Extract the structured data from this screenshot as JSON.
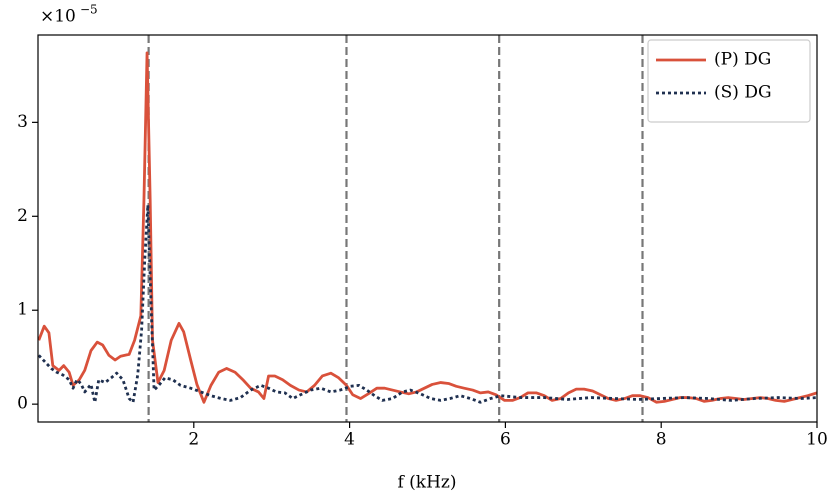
{
  "chart_data": {
    "type": "line",
    "xlabel": "f (kHz)",
    "y_multiplier": {
      "base": "×10",
      "exponent": "−5"
    },
    "xlim": [
      0,
      10
    ],
    "ylim": [
      -0.19,
      3.93
    ],
    "xticks": [
      2,
      4,
      6,
      8,
      10
    ],
    "yticks": [
      0,
      1,
      2,
      3
    ],
    "vlines": [
      1.42,
      3.96,
      5.92,
      7.76
    ],
    "vline_color": "#777777",
    "legend": "upper right",
    "series": [
      {
        "name": "(P) DG",
        "color": "#d9513b",
        "style": "solid",
        "x": [
          0.01,
          0.08,
          0.14,
          0.19,
          0.27,
          0.33,
          0.4,
          0.45,
          0.53,
          0.6,
          0.68,
          0.76,
          0.83,
          0.91,
          0.99,
          1.06,
          1.17,
          1.24,
          1.32,
          1.36,
          1.4,
          1.44,
          1.47,
          1.54,
          1.62,
          1.71,
          1.81,
          1.87,
          1.96,
          2.04,
          2.13,
          2.22,
          2.32,
          2.42,
          2.53,
          2.63,
          2.73,
          2.83,
          2.9,
          2.96,
          3.04,
          3.14,
          3.24,
          3.35,
          3.45,
          3.55,
          3.65,
          3.76,
          3.86,
          3.96,
          4.04,
          4.14,
          4.24,
          4.35,
          4.45,
          4.55,
          4.65,
          4.76,
          4.86,
          4.96,
          5.06,
          5.17,
          5.27,
          5.37,
          5.47,
          5.58,
          5.68,
          5.78,
          5.88,
          5.99,
          6.09,
          6.19,
          6.29,
          6.4,
          6.5,
          6.6,
          6.71,
          6.81,
          6.91,
          7.01,
          7.12,
          7.22,
          7.32,
          7.42,
          7.53,
          7.63,
          7.73,
          7.83,
          7.94,
          8.04,
          8.14,
          8.24,
          8.35,
          8.45,
          8.55,
          8.65,
          8.76,
          8.86,
          8.96,
          9.06,
          9.17,
          9.27,
          9.37,
          9.47,
          9.58,
          9.68,
          9.78,
          9.88,
          10.0
        ],
        "values": [
          0.68,
          0.83,
          0.76,
          0.41,
          0.36,
          0.41,
          0.34,
          0.2,
          0.26,
          0.36,
          0.57,
          0.66,
          0.63,
          0.52,
          0.47,
          0.51,
          0.53,
          0.68,
          0.94,
          2.17,
          3.74,
          2.17,
          0.68,
          0.23,
          0.36,
          0.68,
          0.86,
          0.77,
          0.47,
          0.21,
          0.02,
          0.2,
          0.34,
          0.38,
          0.34,
          0.26,
          0.17,
          0.13,
          0.06,
          0.3,
          0.3,
          0.26,
          0.2,
          0.15,
          0.13,
          0.2,
          0.3,
          0.33,
          0.28,
          0.2,
          0.1,
          0.06,
          0.11,
          0.17,
          0.17,
          0.15,
          0.13,
          0.11,
          0.13,
          0.17,
          0.21,
          0.23,
          0.22,
          0.19,
          0.17,
          0.15,
          0.12,
          0.13,
          0.1,
          0.04,
          0.04,
          0.07,
          0.12,
          0.12,
          0.09,
          0.04,
          0.06,
          0.12,
          0.16,
          0.16,
          0.14,
          0.1,
          0.06,
          0.04,
          0.06,
          0.09,
          0.09,
          0.07,
          0.02,
          0.03,
          0.05,
          0.07,
          0.07,
          0.06,
          0.03,
          0.04,
          0.06,
          0.07,
          0.06,
          0.05,
          0.06,
          0.07,
          0.06,
          0.04,
          0.03,
          0.05,
          0.07,
          0.09,
          0.12
        ]
      },
      {
        "name": "(S) DG",
        "color": "#1f3050",
        "style": "dotted",
        "x": [
          0.01,
          0.09,
          0.17,
          0.24,
          0.32,
          0.4,
          0.45,
          0.5,
          0.55,
          0.6,
          0.68,
          0.73,
          0.78,
          0.86,
          0.94,
          1.01,
          1.09,
          1.17,
          1.22,
          1.28,
          1.33,
          1.37,
          1.41,
          1.45,
          1.49,
          1.55,
          1.63,
          1.73,
          1.83,
          1.96,
          2.09,
          2.22,
          2.35,
          2.47,
          2.6,
          2.73,
          2.86,
          2.96,
          3.06,
          3.17,
          3.27,
          3.37,
          3.5,
          3.63,
          3.76,
          3.88,
          4.01,
          4.12,
          4.22,
          4.32,
          4.42,
          4.55,
          4.68,
          4.78,
          4.91,
          5.04,
          5.17,
          5.29,
          5.42,
          5.55,
          5.68,
          5.81,
          5.94,
          6.2,
          6.5,
          6.8,
          7.1,
          7.4,
          7.7,
          8.0,
          8.3,
          8.6,
          8.9,
          9.2,
          9.5,
          9.8,
          10.0
        ],
        "values": [
          0.52,
          0.45,
          0.38,
          0.34,
          0.31,
          0.26,
          0.17,
          0.26,
          0.22,
          0.13,
          0.21,
          0.02,
          0.26,
          0.23,
          0.28,
          0.33,
          0.26,
          0.06,
          0.02,
          0.31,
          0.79,
          1.53,
          2.12,
          1.1,
          0.15,
          0.2,
          0.28,
          0.26,
          0.2,
          0.17,
          0.13,
          0.09,
          0.06,
          0.04,
          0.07,
          0.15,
          0.2,
          0.17,
          0.13,
          0.12,
          0.06,
          0.1,
          0.15,
          0.17,
          0.13,
          0.15,
          0.19,
          0.2,
          0.15,
          0.09,
          0.04,
          0.06,
          0.13,
          0.15,
          0.11,
          0.06,
          0.04,
          0.06,
          0.09,
          0.06,
          0.02,
          0.06,
          0.09,
          0.07,
          0.07,
          0.05,
          0.07,
          0.06,
          0.05,
          0.06,
          0.07,
          0.06,
          0.04,
          0.06,
          0.07,
          0.06,
          0.07
        ]
      }
    ]
  }
}
